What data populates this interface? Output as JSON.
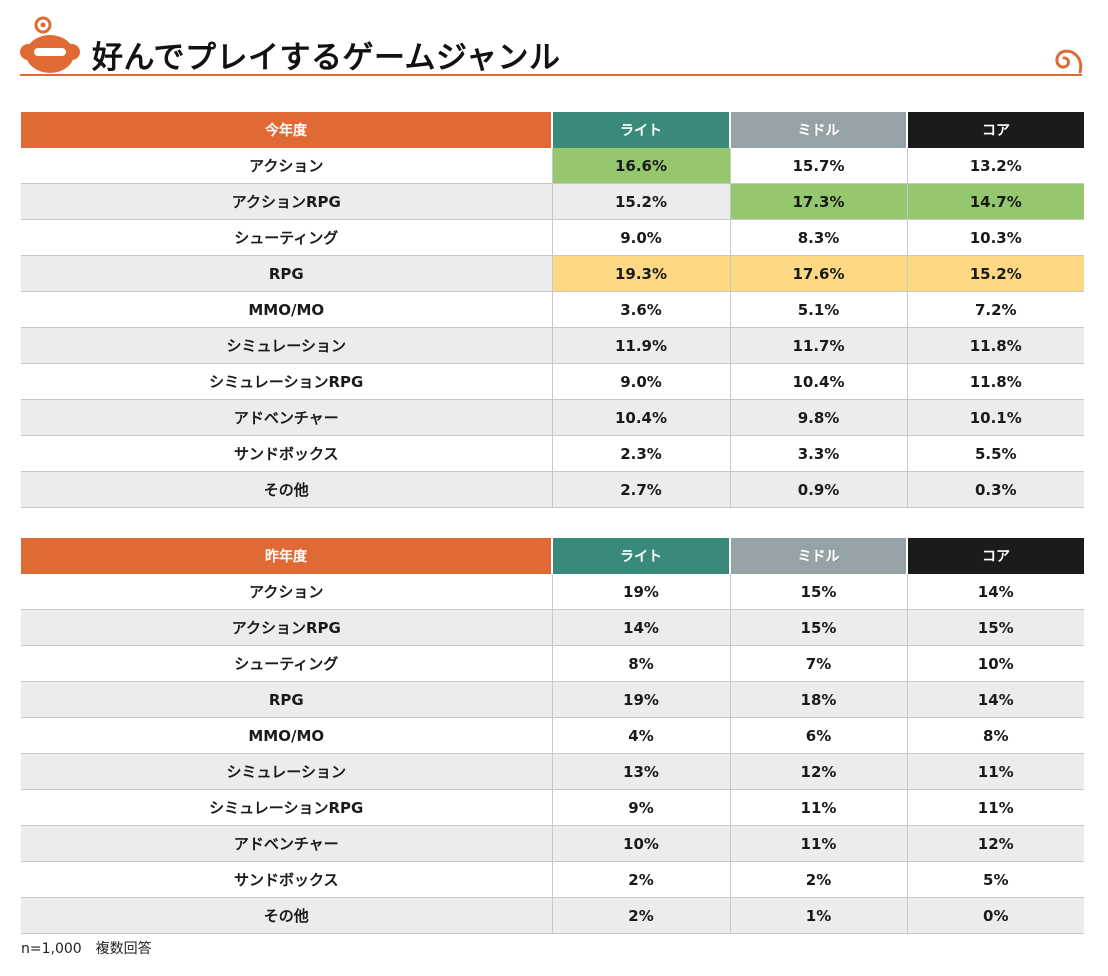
{
  "title": "好んでプレイするゲームジャンル",
  "colors": {
    "accent": "#e06a35",
    "light": "#3a8a7c",
    "middle": "#95a3a6",
    "core": "#1b1b1b",
    "highlight_green": "#95c76f",
    "highlight_yellow": "#fed983"
  },
  "this_year": {
    "header": [
      "今年度",
      "ライト",
      "ミドル",
      "コア"
    ],
    "rows": [
      {
        "genre": "アクション",
        "light": "16.6%",
        "middle": "15.7%",
        "core": "13.2%"
      },
      {
        "genre": "アクションRPG",
        "light": "15.2%",
        "middle": "17.3%",
        "core": "14.7%"
      },
      {
        "genre": "シューティング",
        "light": "9.0%",
        "middle": "8.3%",
        "core": "10.3%"
      },
      {
        "genre": "RPG",
        "light": "19.3%",
        "middle": "17.6%",
        "core": "15.2%"
      },
      {
        "genre": "MMO/MO",
        "light": "3.6%",
        "middle": "5.1%",
        "core": "7.2%"
      },
      {
        "genre": "シミュレーション",
        "light": "11.9%",
        "middle": "11.7%",
        "core": "11.8%"
      },
      {
        "genre": "シミュレーションRPG",
        "light": "9.0%",
        "middle": "10.4%",
        "core": "11.8%"
      },
      {
        "genre": "アドベンチャー",
        "light": "10.4%",
        "middle": "9.8%",
        "core": "10.1%"
      },
      {
        "genre": "サンドボックス",
        "light": "2.3%",
        "middle": "3.3%",
        "core": "5.5%"
      },
      {
        "genre": "その他",
        "light": "2.7%",
        "middle": "0.9%",
        "core": "0.3%"
      }
    ]
  },
  "last_year": {
    "header": [
      "昨年度",
      "ライト",
      "ミドル",
      "コア"
    ],
    "rows": [
      {
        "genre": "アクション",
        "light": "19%",
        "middle": "15%",
        "core": "14%"
      },
      {
        "genre": "アクションRPG",
        "light": "14%",
        "middle": "15%",
        "core": "15%"
      },
      {
        "genre": "シューティング",
        "light": "8%",
        "middle": "7%",
        "core": "10%"
      },
      {
        "genre": "RPG",
        "light": "19%",
        "middle": "18%",
        "core": "14%"
      },
      {
        "genre": "MMO/MO",
        "light": "4%",
        "middle": "6%",
        "core": "8%"
      },
      {
        "genre": "シミュレーション",
        "light": "13%",
        "middle": "12%",
        "core": "11%"
      },
      {
        "genre": "シミュレーションRPG",
        "light": "9%",
        "middle": "11%",
        "core": "11%"
      },
      {
        "genre": "アドベンチャー",
        "light": "10%",
        "middle": "11%",
        "core": "12%"
      },
      {
        "genre": "サンドボックス",
        "light": "2%",
        "middle": "2%",
        "core": "5%"
      },
      {
        "genre": "その他",
        "light": "2%",
        "middle": "1%",
        "core": "0%"
      }
    ]
  },
  "footnote": "n=1,000　複数回答"
}
